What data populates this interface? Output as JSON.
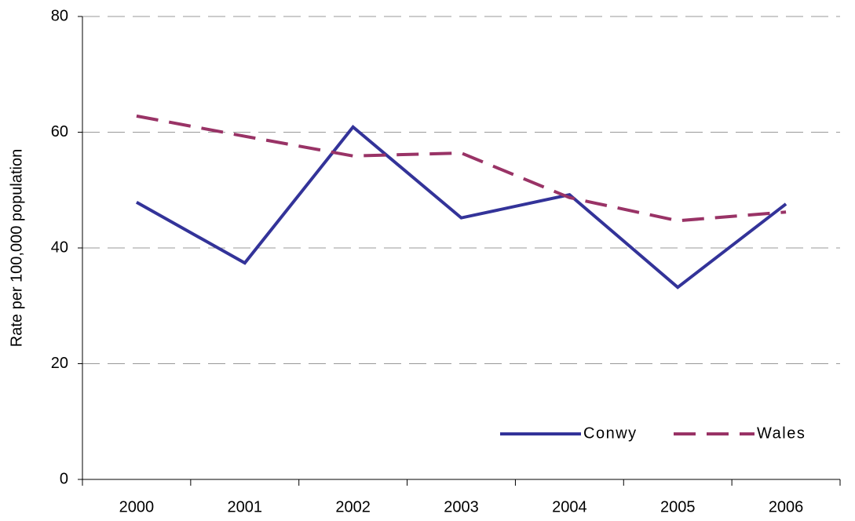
{
  "chart_data": {
    "type": "line",
    "y_label": "Rate per 100,000 population",
    "categories": [
      "2000",
      "2001",
      "2002",
      "2003",
      "2004",
      "2005",
      "2006"
    ],
    "series": [
      {
        "name": "Conwy",
        "color": "#333399",
        "line_style": "solid",
        "values": [
          47.9,
          37.4,
          60.9,
          45.2,
          49.2,
          33.2,
          47.6
        ]
      },
      {
        "name": "Wales",
        "color": "#993366",
        "line_style": "dashed",
        "values": [
          62.8,
          59.3,
          55.9,
          56.4,
          48.7,
          44.7,
          46.2
        ]
      }
    ],
    "ylim": [
      0,
      80
    ],
    "yticks": [
      0,
      20,
      40,
      60,
      80
    ],
    "grid": true,
    "legend": "lower right"
  }
}
